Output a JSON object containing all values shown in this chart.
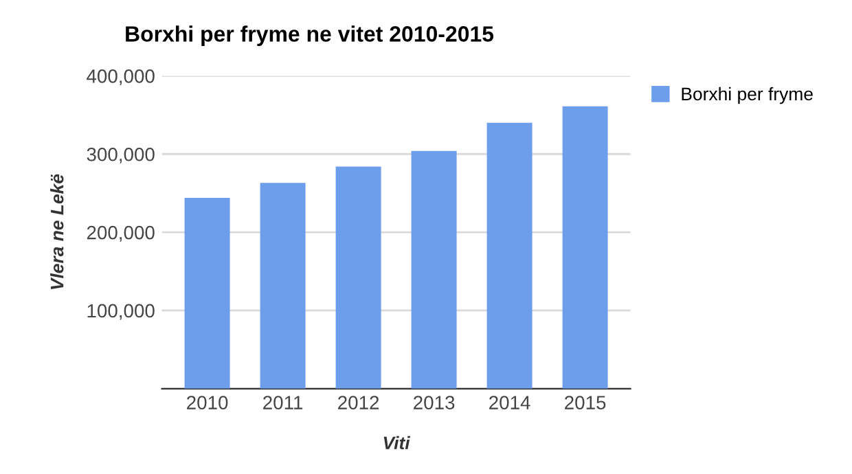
{
  "chart_data": {
    "type": "bar",
    "title": "Borxhi per fryme ne vitet 2010-2015",
    "xlabel": "Viti",
    "ylabel": "Vlera ne Lekë",
    "categories": [
      "2010",
      "2011",
      "2012",
      "2013",
      "2014",
      "2015"
    ],
    "series": [
      {
        "name": "Borxhi per fryme",
        "color": "#6d9eeb",
        "values": [
          244000,
          263000,
          284000,
          304000,
          340000,
          361000
        ]
      }
    ],
    "ylim": [
      0,
      400000
    ],
    "yticks": [
      {
        "value": 0,
        "label": null
      },
      {
        "value": 100000,
        "label": "100,000"
      },
      {
        "value": 200000,
        "label": "200,000"
      },
      {
        "value": 300000,
        "label": "300,000"
      },
      {
        "value": 400000,
        "label": "400,000"
      }
    ],
    "grid": "y",
    "legend": "right"
  }
}
